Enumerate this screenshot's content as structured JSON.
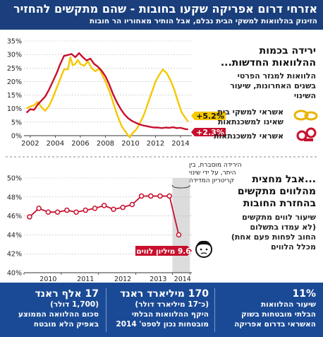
{
  "header": {
    "title": "אזרחי דרום אפריקה שקעו בחובות - שהם מתקשים להחזיר",
    "subtitle": "הזינוק בהלוואות למשקי הבית נבלם, אבל הותיר מאחוריו הר חובות"
  },
  "section1": {
    "title_line1": "ירידה בכמות",
    "title_line2": "ההלוואות החדשות...",
    "desc_line1": "הלוואות למגזר הפרטי",
    "desc_line2": "בשנים האחרונות, שיעור",
    "desc_line3": "השינוי",
    "legend_yellow_line1": "אשראי למשקי בית",
    "legend_yellow_line2": "שאינו למשכנתאות",
    "legend_red": "אשראי למשכנתאות",
    "badge_yellow": "+5.2%",
    "badge_red": "+2.3%"
  },
  "section2": {
    "title_line1": "...אבל מחצית",
    "title_line2": "מהלווים מתקשים",
    "title_line3": "בהחזרת החובות",
    "desc_line1": "שיעור לווים מתקשים",
    "desc_line2": "(לא עמדו בתשלום",
    "desc_line3": "החוב לפחות פעם אחת)",
    "desc_line4": "מכלל הלווים",
    "annotation_line1": "הירידה מוסברת, בין",
    "annotation_line2": "היתר, על ידי שינוי",
    "annotation_line3": "קריטריון המדידה",
    "badge": "9.6 מיליון לווים"
  },
  "footer": {
    "cell1_big": "11%",
    "cell1_line1": "שיעור ההלוואות",
    "cell1_line2": "הבלתי מובטחות בשוק",
    "cell1_line3": "האשראי בדרום אפריקה",
    "cell2_big": "170 מיליארד ראנד",
    "cell2_line1": "(כ־17 מיליארד דולר)",
    "cell2_line2": "היקף ההלוואות הבלתי",
    "cell2_line3": "מובטחות נכון לספט' 2014",
    "cell3_big": "17 אלף ראנד",
    "cell3_line1": "(1,700 דולר)",
    "cell3_line2": "סכום ההלוואה הממוצע",
    "cell3_line3": "באפיק הלא מובטח"
  },
  "colors": {
    "navy": "#1a3f7c",
    "footer_blue": "#1a4a95",
    "yellow_series": "#f5c800",
    "red_series": "#c8102e"
  },
  "chart_data": [
    {
      "type": "line",
      "title": "",
      "xlabel": "",
      "ylabel": "",
      "ylim": [
        0,
        35
      ],
      "y_ticks": [
        "0%",
        "5%",
        "10%",
        "15%",
        "20%",
        "25%",
        "30%",
        "35%"
      ],
      "x_ticks": [
        "2002",
        "2004",
        "2006",
        "2008",
        "2010",
        "2012",
        "2014"
      ],
      "grid": true,
      "series": [
        {
          "name": "אשראי למשקי בית שאינו למשכנתאות",
          "color": "#f5c800",
          "points": [
            [
              2001.7,
              10
            ],
            [
              2002.0,
              10.8
            ],
            [
              2002.3,
              11.2
            ],
            [
              2002.6,
              12.5
            ],
            [
              2002.9,
              10.5
            ],
            [
              2003.2,
              9.2
            ],
            [
              2003.5,
              11.0
            ],
            [
              2003.8,
              14.0
            ],
            [
              2004.1,
              17.5
            ],
            [
              2004.4,
              21.0
            ],
            [
              2004.7,
              24.5
            ],
            [
              2005.0,
              24.5
            ],
            [
              2005.2,
              29.0
            ],
            [
              2005.4,
              26.0
            ],
            [
              2005.6,
              26.5
            ],
            [
              2005.8,
              28.0
            ],
            [
              2006.0,
              26.5
            ],
            [
              2006.3,
              25.8
            ],
            [
              2006.6,
              27.5
            ],
            [
              2006.9,
              25.0
            ],
            [
              2007.2,
              23.8
            ],
            [
              2007.5,
              24.8
            ],
            [
              2007.8,
              22.0
            ],
            [
              2008.1,
              19.0
            ],
            [
              2008.4,
              15.5
            ],
            [
              2008.7,
              11.0
            ],
            [
              2009.0,
              7.0
            ],
            [
              2009.3,
              3.5
            ],
            [
              2009.6,
              1.5
            ],
            [
              2009.9,
              -0.5
            ],
            [
              2010.2,
              1.0
            ],
            [
              2010.5,
              2.5
            ],
            [
              2010.8,
              5.0
            ],
            [
              2011.1,
              8.0
            ],
            [
              2011.4,
              12.0
            ],
            [
              2011.7,
              16.0
            ],
            [
              2012.0,
              20.0
            ],
            [
              2012.3,
              22.5
            ],
            [
              2012.6,
              24.5
            ],
            [
              2012.9,
              23.0
            ],
            [
              2013.2,
              20.5
            ],
            [
              2013.5,
              17.0
            ],
            [
              2013.8,
              12.5
            ],
            [
              2014.1,
              8.5
            ],
            [
              2014.4,
              6.5
            ],
            [
              2014.6,
              5.2
            ]
          ]
        },
        {
          "name": "אשראי למשכנתאות",
          "color": "#c8102e",
          "points": [
            [
              2001.7,
              8.5
            ],
            [
              2002.0,
              9.8
            ],
            [
              2002.3,
              9.5
            ],
            [
              2002.6,
              11.5
            ],
            [
              2002.9,
              13.0
            ],
            [
              2003.2,
              14.5
            ],
            [
              2003.5,
              17.0
            ],
            [
              2003.8,
              20.0
            ],
            [
              2004.1,
              23.0
            ],
            [
              2004.4,
              26.5
            ],
            [
              2004.7,
              29.5
            ],
            [
              2005.0,
              29.8
            ],
            [
              2005.3,
              30.2
            ],
            [
              2005.6,
              29.0
            ],
            [
              2005.9,
              30.5
            ],
            [
              2006.2,
              29.0
            ],
            [
              2006.5,
              27.8
            ],
            [
              2006.8,
              28.5
            ],
            [
              2007.1,
              26.5
            ],
            [
              2007.4,
              25.5
            ],
            [
              2007.7,
              24.0
            ],
            [
              2008.0,
              22.0
            ],
            [
              2008.3,
              19.0
            ],
            [
              2008.6,
              15.5
            ],
            [
              2008.9,
              12.5
            ],
            [
              2009.2,
              10.0
            ],
            [
              2009.5,
              8.0
            ],
            [
              2009.8,
              6.5
            ],
            [
              2010.1,
              5.5
            ],
            [
              2010.4,
              4.8
            ],
            [
              2010.7,
              4.2
            ],
            [
              2011.0,
              3.8
            ],
            [
              2011.3,
              3.5
            ],
            [
              2011.6,
              3.2
            ],
            [
              2011.9,
              3.0
            ],
            [
              2012.2,
              3.0
            ],
            [
              2012.5,
              2.8
            ],
            [
              2012.8,
              3.0
            ],
            [
              2013.1,
              2.9
            ],
            [
              2013.4,
              3.1
            ],
            [
              2013.7,
              2.8
            ],
            [
              2014.0,
              2.9
            ],
            [
              2014.3,
              2.5
            ],
            [
              2014.6,
              2.3
            ]
          ]
        }
      ]
    },
    {
      "type": "line",
      "title": "",
      "xlabel": "",
      "ylabel": "",
      "ylim": [
        40,
        50
      ],
      "y_ticks": [
        "40%",
        "42%",
        "44%",
        "46%",
        "48%",
        "50%"
      ],
      "x_ticks": [
        "2010",
        "2011",
        "2012",
        "2013",
        "2014"
      ],
      "grid": true,
      "series": [
        {
          "name": "שיעור לווים מתקשים",
          "color": "#c8102e",
          "points": [
            [
              2009.75,
              45.9
            ],
            [
              2010.0,
              46.8
            ],
            [
              2010.25,
              46.4
            ],
            [
              2010.5,
              46.4
            ],
            [
              2010.75,
              46.6
            ],
            [
              2011.0,
              46.4
            ],
            [
              2011.25,
              46.6
            ],
            [
              2011.5,
              46.8
            ],
            [
              2011.75,
              47.1
            ],
            [
              2012.0,
              46.7
            ],
            [
              2012.25,
              46.9
            ],
            [
              2012.5,
              47.2
            ],
            [
              2012.75,
              48.1
            ],
            [
              2013.0,
              48.1
            ],
            [
              2013.25,
              48.1
            ],
            [
              2013.5,
              48.1
            ],
            [
              2013.75,
              44.0
            ]
          ]
        }
      ]
    }
  ]
}
